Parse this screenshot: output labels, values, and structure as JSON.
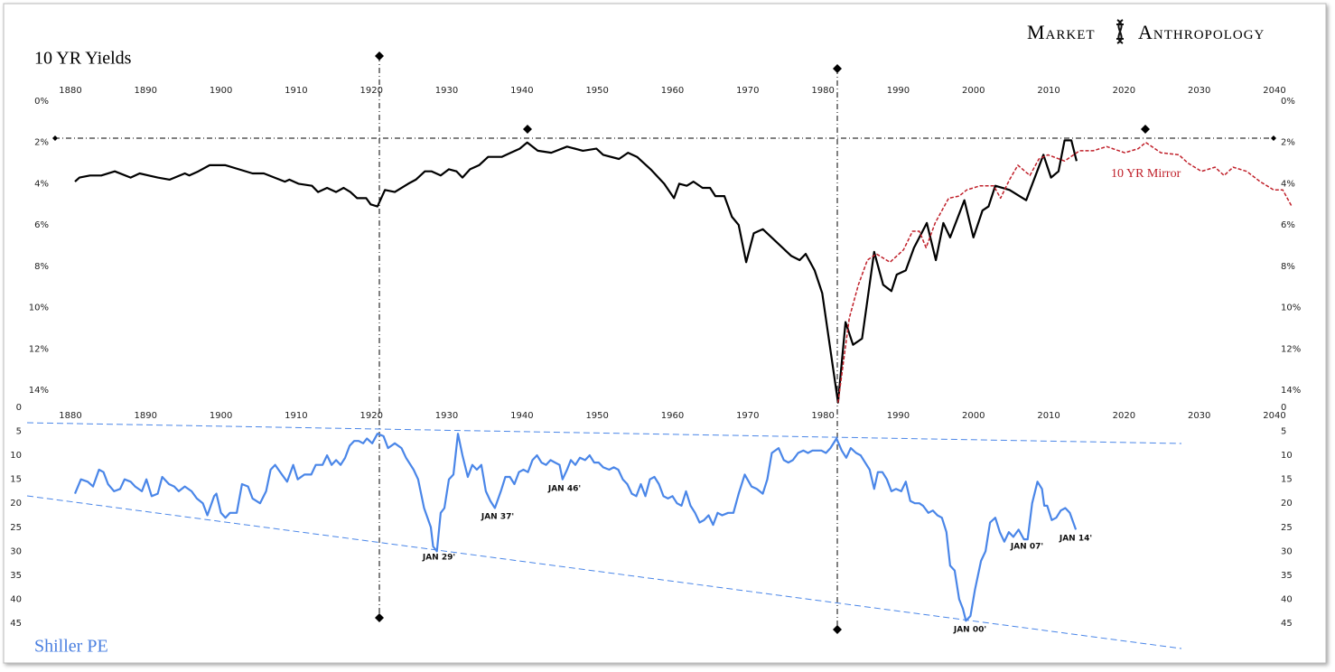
{
  "brand": [
    "Market",
    "Anthropology"
  ],
  "chart_data": [
    {
      "type": "line",
      "title": "10 YR Yields",
      "y_inverted": true,
      "xlim": [
        1878,
        2043
      ],
      "xticks": [
        1880,
        1890,
        1900,
        1910,
        1920,
        1930,
        1940,
        1950,
        1960,
        1970,
        1980,
        1990,
        2000,
        2010,
        2020,
        2030,
        2040
      ],
      "ylim": [
        0,
        14
      ],
      "yticks": [
        {
          "value": 0,
          "label": "0%"
        },
        {
          "value": 2,
          "label": "2%"
        },
        {
          "value": 4,
          "label": "4%"
        },
        {
          "value": 6,
          "label": "6%"
        },
        {
          "value": 8,
          "label": "8%"
        },
        {
          "value": 10,
          "label": "10%"
        },
        {
          "value": 12,
          "label": "12%"
        },
        {
          "value": 14,
          "label": "14%"
        }
      ],
      "series": [
        {
          "color": "#000000",
          "dashed": false,
          "x": [
            1880.6,
            1881.2,
            1882.6,
            1884.1,
            1885.9,
            1888.0,
            1889.2,
            1890.4,
            1891.6,
            1893.2,
            1895.2,
            1895.8,
            1897.0,
            1898.5,
            1900.6,
            1904.2,
            1905.7,
            1908.5,
            1909.1,
            1910.3,
            1912.1,
            1912.9,
            1914.1,
            1915.3,
            1916.3,
            1917.2,
            1918.1,
            1919.3,
            1919.9,
            1920.8,
            1921.8,
            1923.1,
            1924.9,
            1925.9,
            1927.1,
            1928.0,
            1929.2,
            1930.3,
            1931.3,
            1932.1,
            1933.1,
            1934.3,
            1935.5,
            1937.3,
            1938.5,
            1939.7,
            1940.7,
            1942.1,
            1943.9,
            1946.0,
            1948.1,
            1949.9,
            1950.8,
            1952.9,
            1954.1,
            1955.3,
            1957.1,
            1958.9,
            1960.2,
            1960.9,
            1961.9,
            1962.8,
            1964.0,
            1965.0,
            1965.7,
            1966.9,
            1967.9,
            1968.8,
            1969.8,
            1970.8,
            1972.0,
            1975.8,
            1976.9,
            1977.7,
            1978.9,
            1979.9,
            1982.0,
            1983.0,
            1984.0,
            1985.2,
            1986.8,
            1988.0,
            1989.1,
            1989.8,
            1991.0,
            1992.1,
            1993.8,
            1995.0,
            1996.0,
            1996.9,
            1998.8,
            2000.0,
            2001.2,
            2002.0,
            2002.9,
            2004.8,
            2007.0,
            2009.3,
            2010.3,
            2011.3,
            2012.1,
            2013.0,
            2013.7
          ],
          "values": [
            3.9,
            3.7,
            3.6,
            3.6,
            3.4,
            3.7,
            3.5,
            3.6,
            3.7,
            3.8,
            3.5,
            3.6,
            3.4,
            3.1,
            3.1,
            3.5,
            3.5,
            3.9,
            3.8,
            4.0,
            4.1,
            4.4,
            4.2,
            4.4,
            4.2,
            4.4,
            4.7,
            4.7,
            5.0,
            5.1,
            4.3,
            4.4,
            4.0,
            3.8,
            3.4,
            3.4,
            3.6,
            3.3,
            3.4,
            3.7,
            3.3,
            3.1,
            2.7,
            2.7,
            2.5,
            2.3,
            2.0,
            2.4,
            2.5,
            2.2,
            2.4,
            2.3,
            2.6,
            2.8,
            2.5,
            2.7,
            3.3,
            4.0,
            4.7,
            4.0,
            4.1,
            3.9,
            4.2,
            4.2,
            4.6,
            4.6,
            5.6,
            6.0,
            7.8,
            6.4,
            6.2,
            7.5,
            7.7,
            7.4,
            8.2,
            9.3,
            14.6,
            10.7,
            11.8,
            11.5,
            7.3,
            8.9,
            9.2,
            8.4,
            8.2,
            7.1,
            5.9,
            7.7,
            5.9,
            6.6,
            4.8,
            6.6,
            5.3,
            5.1,
            4.1,
            4.3,
            4.8,
            2.6,
            3.7,
            3.4,
            1.9,
            1.9,
            2.9
          ]
        },
        {
          "name": "10 YR Mirror",
          "color": "#c0202a",
          "dashed": true,
          "x": [
            1982.0,
            1983.5,
            1984.7,
            1985.9,
            1987.1,
            1988.9,
            1990.7,
            1991.9,
            1992.8,
            1993.7,
            1994.9,
            1996.7,
            1998.1,
            1999.1,
            2000.9,
            2002.7,
            2003.6,
            2004.8,
            2005.9,
            2007.5,
            2008.7,
            2009.9,
            2012.1,
            2014.1,
            2015.9,
            2017.7,
            2020.1,
            2021.9,
            2022.9,
            2024.9,
            2027.3,
            2028.5,
            2030.3,
            2032.1,
            2033.3,
            2034.5,
            2036.3,
            2038.1,
            2039.9,
            2041.1,
            2042.3
          ],
          "values": [
            14.6,
            10.5,
            8.9,
            7.7,
            7.4,
            7.8,
            7.2,
            6.3,
            6.3,
            7.1,
            5.9,
            4.7,
            4.6,
            4.3,
            4.1,
            4.1,
            4.7,
            3.8,
            3.1,
            3.6,
            2.8,
            2.6,
            2.9,
            2.4,
            2.4,
            2.2,
            2.5,
            2.3,
            2.0,
            2.5,
            2.6,
            3.0,
            3.4,
            3.2,
            3.6,
            3.2,
            3.4,
            3.9,
            4.3,
            4.3,
            5.1
          ]
        }
      ]
    },
    {
      "type": "line",
      "title": "Shiller PE",
      "y_inverted": true,
      "xlim": [
        1878,
        2043
      ],
      "xticks": [
        1880,
        1890,
        1900,
        1910,
        1920,
        1930,
        1940,
        1950,
        1960,
        1970,
        1980,
        1990,
        2000,
        2010,
        2020,
        2030,
        2040
      ],
      "ylim": [
        0,
        45
      ],
      "yticks": [
        0,
        5,
        10,
        15,
        20,
        25,
        30,
        35,
        40,
        45
      ],
      "tick_color": "#4a7fe0",
      "annotations": [
        "JAN 29'",
        "JAN 37'",
        "JAN 46'",
        "JAN 00'",
        "JAN 07'",
        "JAN 14'"
      ],
      "series": [
        {
          "color": "#4a86e8",
          "dashed": false,
          "x": [
            1880.6,
            1881.4,
            1882.3,
            1883.0,
            1883.8,
            1884.4,
            1885.0,
            1885.8,
            1886.6,
            1887.2,
            1888.0,
            1888.6,
            1889.5,
            1890.1,
            1890.8,
            1891.6,
            1892.2,
            1893.1,
            1893.8,
            1894.4,
            1895.2,
            1896.1,
            1896.8,
            1897.6,
            1898.2,
            1899.1,
            1899.4,
            1900.0,
            1900.6,
            1901.2,
            1902.1,
            1902.8,
            1903.6,
            1904.2,
            1905.2,
            1906.0,
            1906.6,
            1907.2,
            1908.1,
            1908.8,
            1909.6,
            1910.2,
            1911.1,
            1912.0,
            1912.6,
            1913.5,
            1914.1,
            1914.7,
            1915.3,
            1915.9,
            1916.5,
            1917.1,
            1917.7,
            1918.3,
            1918.9,
            1919.4,
            1920.1,
            1920.8,
            1921.6,
            1922.2,
            1923.1,
            1924.0,
            1924.6,
            1925.6,
            1926.2,
            1927.0,
            1927.9,
            1928.2,
            1928.7,
            1929.2,
            1929.7,
            1930.3,
            1930.9,
            1931.5,
            1932.1,
            1932.8,
            1933.4,
            1934.0,
            1934.6,
            1935.2,
            1935.8,
            1936.4,
            1937.2,
            1937.8,
            1938.4,
            1939.0,
            1939.6,
            1940.2,
            1940.8,
            1941.4,
            1942.0,
            1942.6,
            1943.2,
            1943.8,
            1944.4,
            1945.0,
            1945.4,
            1946.0,
            1946.5,
            1947.1,
            1947.7,
            1948.4,
            1949.0,
            1949.6,
            1950.2,
            1950.8,
            1951.6,
            1952.2,
            1952.8,
            1953.4,
            1954.0,
            1954.6,
            1955.2,
            1955.8,
            1956.4,
            1957.0,
            1957.6,
            1958.2,
            1958.8,
            1959.4,
            1960.0,
            1960.6,
            1961.2,
            1961.8,
            1962.4,
            1963.0,
            1963.6,
            1964.2,
            1964.8,
            1965.4,
            1966.0,
            1966.6,
            1967.4,
            1968.1,
            1968.8,
            1969.6,
            1970.5,
            1971.2,
            1972.0,
            1972.6,
            1973.2,
            1974.1,
            1974.8,
            1975.4,
            1976.0,
            1976.7,
            1977.4,
            1978.0,
            1978.6,
            1979.2,
            1979.8,
            1980.4,
            1981.0,
            1981.8,
            1982.5,
            1983.1,
            1983.7,
            1984.4,
            1985.0,
            1985.6,
            1986.2,
            1986.8,
            1987.3,
            1987.9,
            1988.5,
            1989.1,
            1989.7,
            1990.4,
            1991.0,
            1991.6,
            1992.2,
            1992.8,
            1993.3,
            1994.0,
            1994.6,
            1995.2,
            1995.8,
            1996.4,
            1996.9,
            1997.5,
            1998.1,
            1998.6,
            1999.0,
            1999.6,
            2000.2,
            2001.0,
            2001.6,
            2002.2,
            2002.9,
            2003.5,
            2004.1,
            2004.7,
            2005.3,
            2006.0,
            2006.7,
            2007.2,
            2007.8,
            2008.5,
            2009.1,
            2009.4,
            2009.8,
            2010.4,
            2011.0,
            2011.6,
            2012.2,
            2012.8,
            2013.6
          ],
          "values": [
            18,
            15,
            15.5,
            16.5,
            13,
            13.5,
            16,
            17.5,
            17,
            15,
            15.5,
            16.5,
            17.5,
            15,
            18.5,
            18,
            14.5,
            16,
            16.5,
            17.5,
            16.5,
            17.5,
            19,
            20,
            22.5,
            18.5,
            18,
            22,
            23,
            22,
            22,
            16,
            16.5,
            19,
            20,
            17.5,
            13,
            12,
            14,
            15.5,
            12,
            15,
            14,
            14,
            12,
            12,
            10,
            12,
            11,
            12,
            10.5,
            8,
            7,
            7,
            7.5,
            6.5,
            7.5,
            5.5,
            6,
            8.5,
            7.5,
            8.5,
            10.5,
            13,
            15,
            21,
            25,
            29,
            30,
            22,
            21,
            15,
            14,
            5.5,
            10,
            14.5,
            12,
            13,
            12,
            17.5,
            19.5,
            21,
            17.5,
            14.5,
            14.5,
            16,
            13.5,
            13,
            13.5,
            11,
            10,
            11.5,
            12,
            11,
            11.5,
            12,
            15,
            13,
            11,
            12,
            10.5,
            11,
            10,
            11.5,
            11.5,
            12.5,
            13,
            12.5,
            13,
            15,
            16,
            18,
            18.5,
            16,
            18.5,
            15,
            14.5,
            16,
            18.5,
            19,
            18.5,
            20,
            20.5,
            17.5,
            20.5,
            22,
            24,
            23.5,
            22.5,
            24.5,
            22,
            22.5,
            22,
            22,
            18,
            14,
            16.5,
            17,
            18,
            15,
            9.5,
            8.5,
            11,
            11.5,
            11,
            9.5,
            9,
            9.5,
            9,
            9,
            9,
            9.5,
            8.5,
            6.5,
            9,
            10.5,
            8.5,
            9.5,
            10,
            11.5,
            13,
            17,
            13.5,
            13.5,
            15,
            17.5,
            17,
            17.5,
            15.5,
            19.5,
            20,
            20,
            20.5,
            22,
            21.5,
            22.5,
            23,
            26,
            33,
            34,
            40,
            42,
            44.5,
            43.5,
            38,
            32,
            30,
            24,
            23,
            26,
            28,
            26,
            27,
            25.5,
            27.5,
            27.5,
            20,
            15.5,
            17,
            20.5,
            20.5,
            23.5,
            23,
            21.5,
            21,
            22,
            25.5
          ]
        }
      ]
    }
  ]
}
